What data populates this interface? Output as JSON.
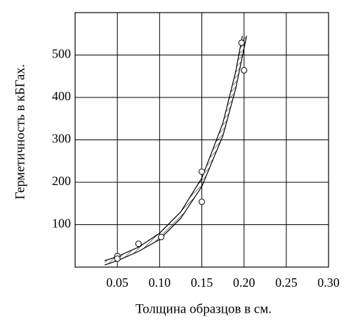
{
  "chart_data": {
    "type": "scatter",
    "xlabel": "Толщина  образцов  в  см.",
    "ylabel": "Герметичность  в  кБГах.",
    "xlim": [
      0,
      0.3
    ],
    "ylim": [
      0,
      600
    ],
    "xticks": [
      0.05,
      {
        "value": 0.1,
        "label": "0.10"
      },
      0.15,
      {
        "value": 0.2,
        "label": "0.20"
      },
      0.25,
      {
        "value": 0.3,
        "label": "0.30"
      }
    ],
    "yticks": [
      100,
      200,
      300,
      400,
      500
    ],
    "grid": true,
    "band_hatch": true,
    "color": "#000000",
    "series": [
      {
        "type": "scatter",
        "x": [
          0.05,
          0.05,
          0.075,
          0.102,
          0.15,
          0.15,
          0.197,
          0.2
        ],
        "values": [
          26,
          20,
          55,
          71,
          225,
          154,
          529,
          464
        ]
      },
      {
        "type": "line",
        "x": [
          0.035,
          0.05,
          0.075,
          0.1,
          0.125,
          0.15,
          0.175,
          0.19,
          0.198
        ],
        "values": [
          15,
          25,
          47,
          80,
          130,
          210,
          340,
          460,
          545
        ]
      },
      {
        "type": "line",
        "x": [
          0.035,
          0.05,
          0.075,
          0.1,
          0.125,
          0.15,
          0.175,
          0.19,
          0.203
        ],
        "values": [
          5,
          15,
          37,
          65,
          115,
          190,
          310,
          420,
          545
        ]
      }
    ]
  }
}
